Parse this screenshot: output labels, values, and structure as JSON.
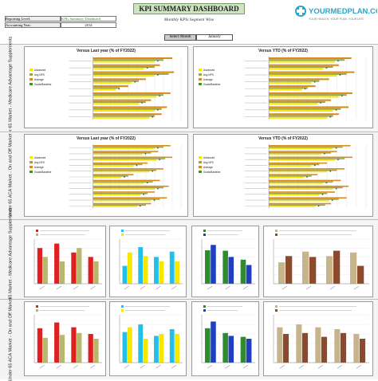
{
  "header": {
    "reporting_level_label": "Reporting Level:",
    "reporting_level_value": "KPIs Summary Dashboard",
    "accounting_year_label": "Accounting Year:",
    "accounting_year_value": "2014",
    "title": "KPI SUMMARY DASHBOARD",
    "subtitle": "Monthly KPIs Segment Wise",
    "select_month_label": "Select Month",
    "select_month_value": "January",
    "logo_text": "YOURMEDPLAN.COM",
    "logo_tagline": "YOUR HEALTH. YOUR PLAN. YOUR LIFE."
  },
  "sections": [
    "Over 65 Market - Medicare Advantage Supplements",
    "Under 65 ACA Market - On and Off Market",
    "Over 65 Market - Medicare Advantage Supplements",
    "Under 65 ACA Market - On and Off Market"
  ],
  "colors": {
    "green": "#2e8b2e",
    "blue": "#1f3fbf",
    "red": "#e02020",
    "yellow": "#f7e600",
    "cyan": "#22c0e8",
    "olive": "#b8b86a",
    "brown": "#8b4a2b",
    "tan": "#c8b48a",
    "khaki": "#9ca04a",
    "orange": "#d88a1a"
  },
  "chart_data": [
    {
      "type": "bar",
      "title": "Versus Last year (% of FY2022)",
      "orientation": "horizontal",
      "legend": [
        "Advanced",
        "Avg NPS",
        "Average",
        "Goals/Baseline"
      ],
      "categories": [
        "",
        "",
        "",
        "",
        "",
        "",
        "",
        "",
        ""
      ],
      "series": [
        {
          "values": [
            90,
            76,
            92,
            60,
            40,
            88,
            66,
            84,
            78
          ]
        },
        {
          "values": [
            80,
            70,
            86,
            52,
            30,
            80,
            60,
            78,
            70
          ]
        },
        {
          "values": [
            70,
            58,
            70,
            44,
            26,
            72,
            52,
            70,
            64
          ]
        }
      ],
      "xlim": [
        0,
        100
      ]
    },
    {
      "type": "bar",
      "title": "Versus YTD (% of FY2022)",
      "orientation": "horizontal",
      "legend": [
        "Advanced",
        "Avg NPS",
        "Average",
        "Goals/Baseline"
      ],
      "categories": [
        "",
        "",
        "",
        "",
        "",
        "",
        "",
        "",
        ""
      ],
      "series": [
        {
          "values": [
            85,
            72,
            88,
            62,
            48,
            86,
            64,
            82,
            72
          ]
        },
        {
          "values": [
            78,
            66,
            80,
            52,
            40,
            80,
            58,
            74,
            66
          ]
        },
        {
          "values": [
            68,
            56,
            70,
            44,
            34,
            72,
            50,
            66,
            60
          ]
        }
      ],
      "xlim": [
        0,
        100
      ]
    },
    {
      "type": "bar",
      "title": "Versus Last year (% of FY2022)",
      "orientation": "horizontal",
      "legend": [
        "Advanced",
        "Avg NPS",
        "Average",
        "Goals/Baseline"
      ],
      "categories": [
        "",
        "",
        "",
        "",
        "",
        "",
        "",
        "",
        "",
        "",
        ""
      ],
      "series": [
        {
          "values": [
            88,
            74,
            90,
            62,
            80,
            46,
            76,
            86,
            70,
            84,
            66
          ]
        },
        {
          "values": [
            80,
            66,
            82,
            56,
            72,
            40,
            68,
            80,
            62,
            76,
            60
          ]
        },
        {
          "values": [
            70,
            56,
            72,
            46,
            64,
            32,
            58,
            70,
            54,
            66,
            50
          ]
        }
      ],
      "xlim": [
        0,
        100
      ]
    },
    {
      "type": "bar",
      "title": "Versus YTD (% of FY2022)",
      "orientation": "horizontal",
      "legend": [
        "Advanced",
        "Avg NPS",
        "Average",
        "Goals/Baseline"
      ],
      "categories": [
        "",
        "",
        "",
        "",
        "",
        "",
        "",
        "",
        "",
        "",
        ""
      ],
      "series": [
        {
          "values": [
            84,
            70,
            86,
            60,
            78,
            50,
            74,
            82,
            68,
            80,
            64
          ]
        },
        {
          "values": [
            76,
            64,
            78,
            52,
            70,
            44,
            66,
            76,
            60,
            72,
            58
          ]
        },
        {
          "values": [
            66,
            54,
            68,
            44,
            60,
            36,
            56,
            66,
            52,
            62,
            48
          ]
        }
      ],
      "xlim": [
        0,
        100
      ]
    },
    {
      "type": "bar",
      "title": "",
      "legend": [],
      "categories": [
        "",
        "",
        "",
        ""
      ],
      "series": [
        {
          "values": [
            80,
            90,
            70,
            60
          ]
        },
        {
          "values": [
            60,
            50,
            80,
            50
          ]
        }
      ],
      "ylim": [
        0,
        100
      ]
    },
    {
      "type": "bar",
      "title": "",
      "legend": [],
      "categories": [
        "",
        "",
        "",
        ""
      ],
      "series": [
        {
          "values": [
            40,
            82,
            60,
            72
          ]
        },
        {
          "values": [
            70,
            62,
            50,
            50
          ]
        }
      ],
      "ylim": [
        0,
        100
      ]
    },
    {
      "type": "bar",
      "title": "",
      "legend": [],
      "categories": [
        "",
        "",
        ""
      ],
      "series": [
        {
          "values": [
            75,
            74,
            54
          ]
        },
        {
          "values": [
            87,
            60,
            42
          ]
        }
      ],
      "ylim": [
        0,
        100
      ]
    },
    {
      "type": "bar",
      "title": "",
      "legend": [],
      "categories": [
        "",
        "",
        "",
        ""
      ],
      "series": [
        {
          "values": [
            48,
            72,
            62,
            70
          ]
        },
        {
          "values": [
            62,
            60,
            74,
            40
          ]
        }
      ],
      "ylim": [
        0,
        100
      ]
    },
    {
      "type": "bar",
      "title": "",
      "legend": [],
      "categories": [
        "",
        "",
        "",
        ""
      ],
      "series": [
        {
          "values": [
            72,
            84,
            74,
            60
          ]
        },
        {
          "values": [
            52,
            58,
            62,
            50
          ]
        }
      ],
      "ylim": [
        0,
        100
      ]
    },
    {
      "type": "bar",
      "title": "",
      "legend": [],
      "categories": [
        "",
        "",
        "",
        ""
      ],
      "series": [
        {
          "values": [
            64,
            80,
            56,
            70
          ]
        },
        {
          "values": [
            74,
            50,
            60,
            60
          ]
        }
      ],
      "ylim": [
        0,
        100
      ]
    },
    {
      "type": "bar",
      "title": "",
      "legend": [],
      "categories": [
        "",
        "",
        ""
      ],
      "series": [
        {
          "values": [
            72,
            62,
            54
          ]
        },
        {
          "values": [
            86,
            56,
            50
          ]
        }
      ],
      "ylim": [
        0,
        100
      ]
    },
    {
      "type": "bar",
      "title": "",
      "legend": [],
      "categories": [
        "",
        "",
        "",
        "",
        ""
      ],
      "series": [
        {
          "values": [
            74,
            80,
            74,
            70,
            60
          ]
        },
        {
          "values": [
            60,
            62,
            54,
            62,
            50
          ]
        }
      ],
      "ylim": [
        0,
        100
      ]
    }
  ]
}
